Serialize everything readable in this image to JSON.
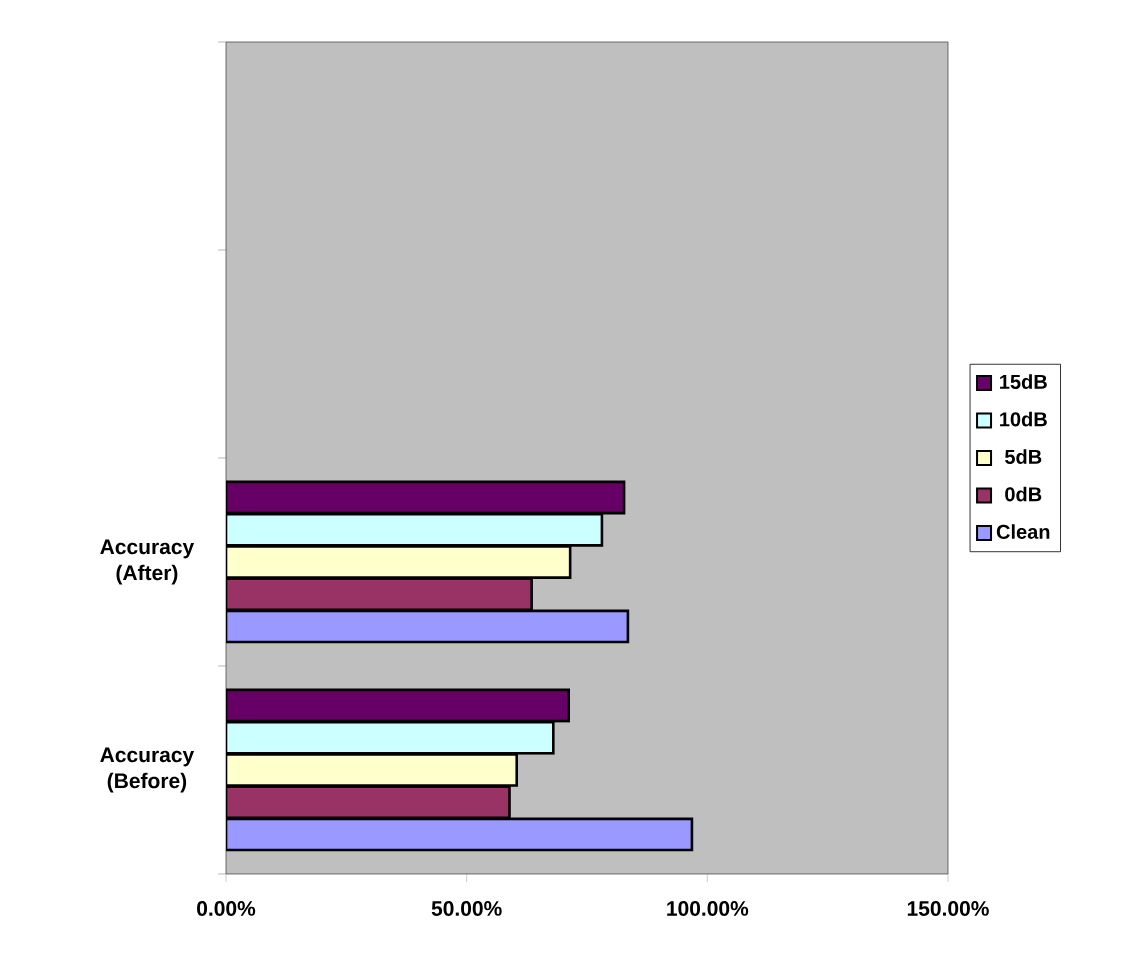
{
  "chart_data": {
    "type": "bar",
    "orientation": "horizontal",
    "categories": [
      null,
      null,
      "Accuracy (After)",
      "Accuracy (Before)"
    ],
    "series": [
      {
        "name": "Clean",
        "color": "#9999ff",
        "values": [
          null,
          null,
          83.5,
          96.8
        ]
      },
      {
        "name": "0dB",
        "color": "#993366",
        "values": [
          null,
          null,
          63.5,
          58.9
        ]
      },
      {
        "name": "5dB",
        "color": "#ffffcc",
        "values": [
          null,
          null,
          71.5,
          60.4
        ]
      },
      {
        "name": "10dB",
        "color": "#ccffff",
        "values": [
          null,
          null,
          78.1,
          68.0
        ]
      },
      {
        "name": "15dB",
        "color": "#660066",
        "values": [
          null,
          null,
          82.7,
          71.2
        ]
      }
    ],
    "xlim": [
      0,
      150
    ],
    "xticks": [
      {
        "value": 0,
        "label": "0.00%"
      },
      {
        "value": 50,
        "label": "50.00%"
      },
      {
        "value": 100,
        "label": "100.00%"
      },
      {
        "value": 150,
        "label": "150.00%"
      }
    ],
    "legend": "right",
    "grid": false
  }
}
